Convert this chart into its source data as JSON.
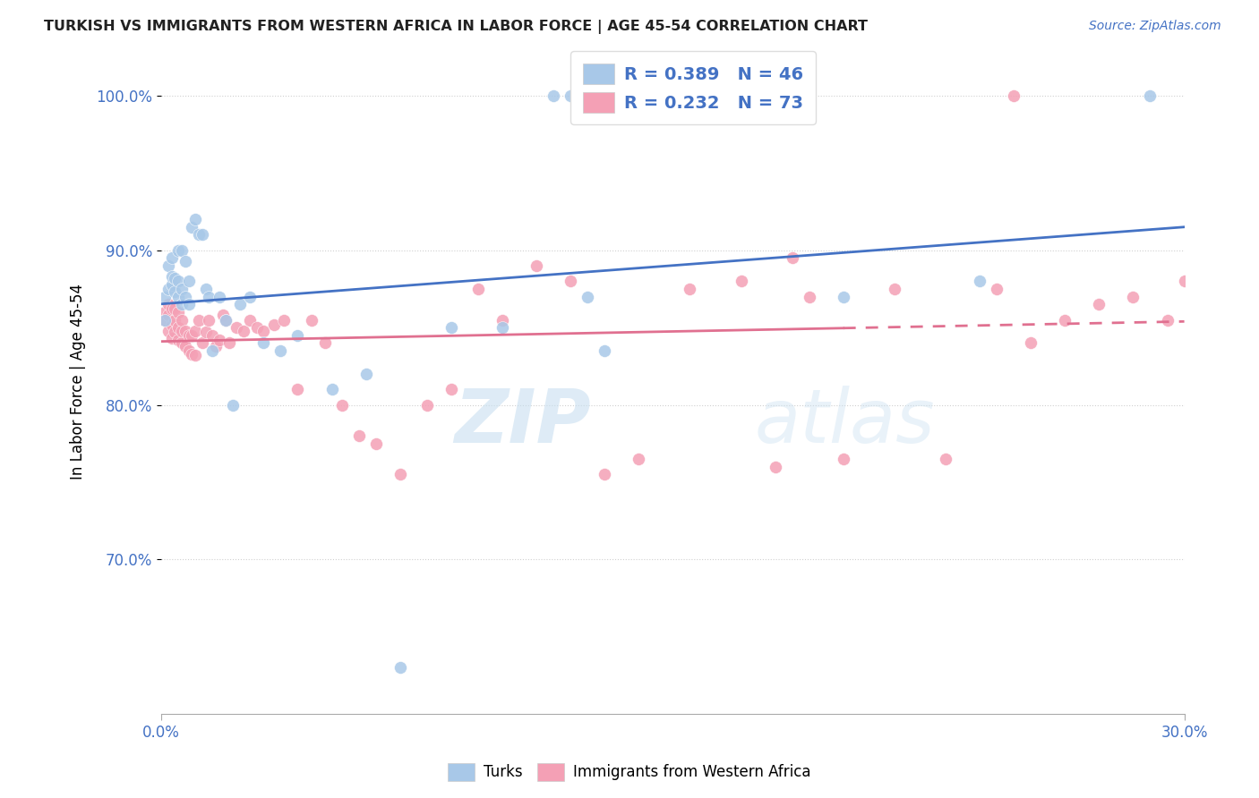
{
  "title": "TURKISH VS IMMIGRANTS FROM WESTERN AFRICA IN LABOR FORCE | AGE 45-54 CORRELATION CHART",
  "source": "Source: ZipAtlas.com",
  "ylabel": "In Labor Force | Age 45-54",
  "xlim": [
    0.0,
    0.3
  ],
  "ylim": [
    0.6,
    1.03
  ],
  "ytick_labels": [
    "70.0%",
    "80.0%",
    "90.0%",
    "100.0%"
  ],
  "ytick_values": [
    0.7,
    0.8,
    0.9,
    1.0
  ],
  "xtick_labels": [
    "0.0%",
    "30.0%"
  ],
  "xtick_values": [
    0.0,
    0.3
  ],
  "title_color": "#222222",
  "source_color": "#4472c4",
  "axis_color": "#4472c4",
  "grid_color": "#d0d0d0",
  "blue_color": "#a8c8e8",
  "pink_color": "#f4a0b5",
  "blue_line_color": "#4472c4",
  "pink_line_color": "#e07090",
  "legend_R1": "R = 0.389",
  "legend_N1": "N = 46",
  "legend_R2": "R = 0.232",
  "legend_N2": "N = 73",
  "turks_label": "Turks",
  "immigrants_label": "Immigrants from Western Africa",
  "turks_x": [
    0.001,
    0.001,
    0.002,
    0.002,
    0.003,
    0.003,
    0.003,
    0.004,
    0.004,
    0.005,
    0.005,
    0.005,
    0.006,
    0.006,
    0.006,
    0.007,
    0.007,
    0.008,
    0.008,
    0.009,
    0.01,
    0.011,
    0.012,
    0.013,
    0.014,
    0.015,
    0.017,
    0.019,
    0.021,
    0.023,
    0.026,
    0.03,
    0.035,
    0.04,
    0.05,
    0.06,
    0.07,
    0.085,
    0.1,
    0.115,
    0.12,
    0.125,
    0.13,
    0.2,
    0.24,
    0.29
  ],
  "turks_y": [
    0.87,
    0.855,
    0.875,
    0.89,
    0.878,
    0.883,
    0.895,
    0.873,
    0.882,
    0.87,
    0.88,
    0.9,
    0.865,
    0.875,
    0.9,
    0.87,
    0.893,
    0.865,
    0.88,
    0.915,
    0.92,
    0.91,
    0.91,
    0.875,
    0.87,
    0.835,
    0.87,
    0.855,
    0.8,
    0.865,
    0.87,
    0.84,
    0.835,
    0.845,
    0.81,
    0.82,
    0.63,
    0.85,
    0.85,
    1.0,
    1.0,
    0.87,
    0.835,
    0.87,
    0.88,
    1.0
  ],
  "immigrants_x": [
    0.001,
    0.001,
    0.002,
    0.002,
    0.002,
    0.003,
    0.003,
    0.003,
    0.004,
    0.004,
    0.004,
    0.005,
    0.005,
    0.005,
    0.006,
    0.006,
    0.006,
    0.007,
    0.007,
    0.008,
    0.008,
    0.009,
    0.009,
    0.01,
    0.01,
    0.011,
    0.012,
    0.013,
    0.014,
    0.015,
    0.016,
    0.017,
    0.018,
    0.019,
    0.02,
    0.022,
    0.024,
    0.026,
    0.028,
    0.03,
    0.033,
    0.036,
    0.04,
    0.044,
    0.048,
    0.053,
    0.058,
    0.063,
    0.07,
    0.078,
    0.085,
    0.093,
    0.1,
    0.11,
    0.12,
    0.13,
    0.14,
    0.155,
    0.17,
    0.185,
    0.2,
    0.215,
    0.23,
    0.245,
    0.255,
    0.265,
    0.275,
    0.285,
    0.295,
    0.3,
    0.18,
    0.19,
    0.25
  ],
  "immigrants_y": [
    0.86,
    0.855,
    0.848,
    0.858,
    0.865,
    0.843,
    0.852,
    0.862,
    0.847,
    0.855,
    0.862,
    0.842,
    0.85,
    0.86,
    0.84,
    0.848,
    0.855,
    0.838,
    0.848,
    0.835,
    0.845,
    0.833,
    0.845,
    0.832,
    0.848,
    0.855,
    0.84,
    0.847,
    0.855,
    0.845,
    0.838,
    0.842,
    0.858,
    0.855,
    0.84,
    0.85,
    0.848,
    0.855,
    0.85,
    0.848,
    0.852,
    0.855,
    0.81,
    0.855,
    0.84,
    0.8,
    0.78,
    0.775,
    0.755,
    0.8,
    0.81,
    0.875,
    0.855,
    0.89,
    0.88,
    0.755,
    0.765,
    0.875,
    0.88,
    0.895,
    0.765,
    0.875,
    0.765,
    0.875,
    0.84,
    0.855,
    0.865,
    0.87,
    0.855,
    0.88,
    0.76,
    0.87,
    1.0
  ],
  "watermark_zip": "ZIP",
  "watermark_atlas": "atlas",
  "background_color": "#ffffff"
}
